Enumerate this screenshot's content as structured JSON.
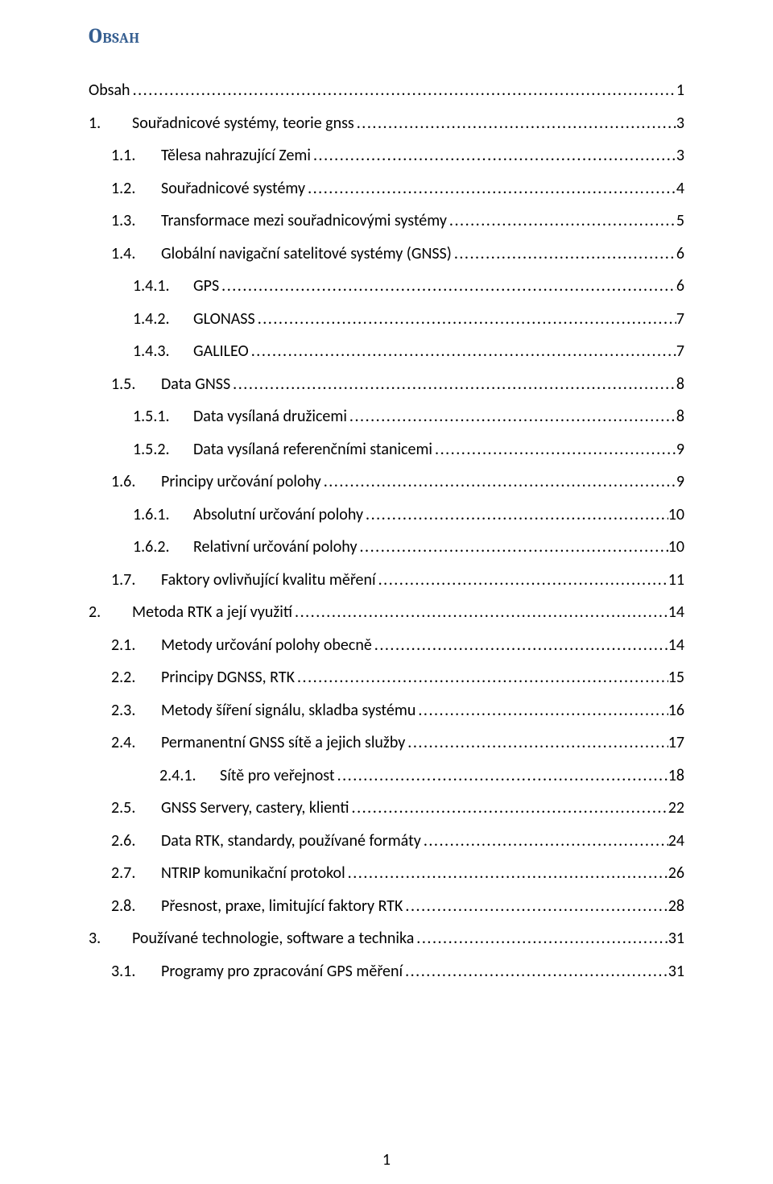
{
  "heading": "Obsah",
  "footer_page_number": "1",
  "entries": [
    {
      "level": 1,
      "num": "",
      "numWidth": 0,
      "title": "Obsah",
      "page": "1"
    },
    {
      "level": 1,
      "num": "1.",
      "numWidth": 54,
      "title": "Souřadnicové systémy, teorie gnss",
      "page": "3"
    },
    {
      "level": 2,
      "num": "1.1.",
      "numWidth": 62,
      "title": "Tělesa nahrazující Zemi",
      "page": "3"
    },
    {
      "level": 2,
      "num": "1.2.",
      "numWidth": 62,
      "title": "Souřadnicové systémy",
      "page": "4"
    },
    {
      "level": 2,
      "num": "1.3.",
      "numWidth": 62,
      "title": "Transformace mezi souřadnicovými systémy",
      "page": "5"
    },
    {
      "level": 2,
      "num": "1.4.",
      "numWidth": 62,
      "title": "Globální navigační satelitové systémy (GNSS)",
      "page": "6"
    },
    {
      "level": 3,
      "num": "1.4.1.",
      "numWidth": 75,
      "title": "GPS",
      "page": "6"
    },
    {
      "level": 3,
      "num": "1.4.2.",
      "numWidth": 75,
      "title": "GLONASS",
      "page": "7"
    },
    {
      "level": 3,
      "num": "1.4.3.",
      "numWidth": 75,
      "title": "GALILEO",
      "page": "7"
    },
    {
      "level": 2,
      "num": "1.5.",
      "numWidth": 62,
      "title": "Data GNSS",
      "page": "8"
    },
    {
      "level": 3,
      "num": "1.5.1.",
      "numWidth": 75,
      "title": "Data vysílaná družicemi",
      "page": "8"
    },
    {
      "level": 3,
      "num": "1.5.2.",
      "numWidth": 75,
      "title": "Data vysílaná referenčními stanicemi",
      "page": "9"
    },
    {
      "level": 2,
      "num": "1.6.",
      "numWidth": 62,
      "title": "Principy určování polohy",
      "page": "9"
    },
    {
      "level": 3,
      "num": "1.6.1.",
      "numWidth": 75,
      "title": "Absolutní určování polohy",
      "page": "10"
    },
    {
      "level": 3,
      "num": "1.6.2.",
      "numWidth": 75,
      "title": "Relativní určování polohy",
      "page": "10"
    },
    {
      "level": 2,
      "num": "1.7.",
      "numWidth": 62,
      "title": "Faktory ovlivňující kvalitu měření",
      "page": "11"
    },
    {
      "level": 1,
      "num": "2.",
      "numWidth": 54,
      "title": "Metoda RTK a její využití",
      "page": "14"
    },
    {
      "level": 2,
      "num": "2.1.",
      "numWidth": 62,
      "title": "Metody určování polohy obecně",
      "page": "14"
    },
    {
      "level": 2,
      "num": "2.2.",
      "numWidth": 62,
      "title": "Principy DGNSS, RTK",
      "page": "15"
    },
    {
      "level": 2,
      "num": "2.3.",
      "numWidth": 62,
      "title": "Metody šíření signálu, skladba systému",
      "page": "16"
    },
    {
      "level": 2,
      "num": "2.4.",
      "numWidth": 62,
      "title": "Permanentní GNSS sítě a jejich služby",
      "page": "17"
    },
    {
      "level": 4,
      "num": "2.4.1.",
      "numWidth": 75,
      "title": "Sítě pro veřejnost",
      "page": "18"
    },
    {
      "level": 2,
      "num": "2.5.",
      "numWidth": 62,
      "title": "GNSS Servery, castery, klienti",
      "page": "22"
    },
    {
      "level": 2,
      "num": "2.6.",
      "numWidth": 62,
      "title": "Data RTK, standardy, používané formáty",
      "page": "24"
    },
    {
      "level": 2,
      "num": "2.7.",
      "numWidth": 62,
      "title": "NTRIP komunikační protokol",
      "page": "26"
    },
    {
      "level": 2,
      "num": "2.8.",
      "numWidth": 62,
      "title": "Přesnost, praxe, limitující faktory RTK",
      "page": "28"
    },
    {
      "level": 1,
      "num": "3.",
      "numWidth": 54,
      "title": "Používané technologie, software a technika",
      "page": "31"
    },
    {
      "level": 2,
      "num": "3.1.",
      "numWidth": 62,
      "title": "Programy pro zpracování GPS měření",
      "page": "31"
    }
  ]
}
